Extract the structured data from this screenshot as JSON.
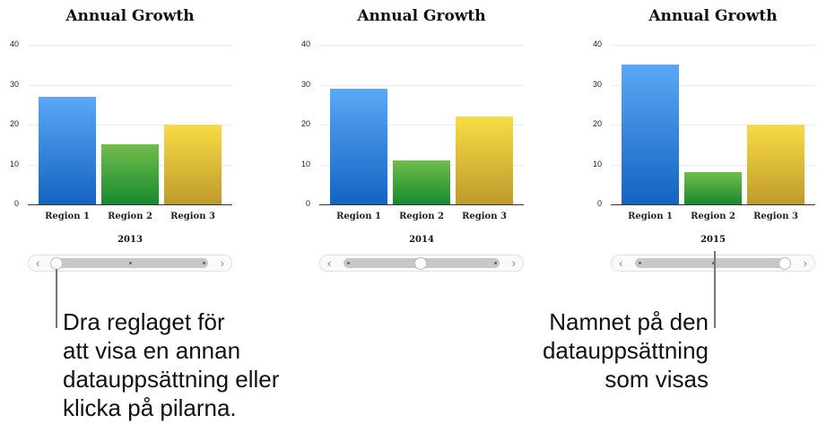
{
  "chart_data": [
    {
      "type": "bar",
      "title": "Annual Growth",
      "categories": [
        "Region 1",
        "Region 2",
        "Region 3"
      ],
      "values": [
        27,
        15,
        20
      ],
      "dataset_label": "2013",
      "ylim": [
        0,
        40
      ],
      "yticks": [
        "0",
        "10",
        "20",
        "30",
        "40"
      ],
      "grid": true,
      "colors": [
        "#3d8ee8",
        "#3aa33a",
        "#e0c030"
      ]
    },
    {
      "type": "bar",
      "title": "Annual Growth",
      "categories": [
        "Region 1",
        "Region 2",
        "Region 3"
      ],
      "values": [
        29,
        11,
        22
      ],
      "dataset_label": "2014",
      "ylim": [
        0,
        40
      ],
      "yticks": [
        "0",
        "10",
        "20",
        "30",
        "40"
      ],
      "grid": true,
      "colors": [
        "#3d8ee8",
        "#3aa33a",
        "#e0c030"
      ]
    },
    {
      "type": "bar",
      "title": "Annual Growth",
      "categories": [
        "Region 1",
        "Region 2",
        "Region 3"
      ],
      "values": [
        35,
        8,
        20
      ],
      "dataset_label": "2015",
      "ylim": [
        0,
        40
      ],
      "yticks": [
        "0",
        "10",
        "20",
        "30",
        "40"
      ],
      "grid": true,
      "colors": [
        "#3d8ee8",
        "#3aa33a",
        "#e0c030"
      ]
    }
  ],
  "sliders": [
    {
      "position": 0
    },
    {
      "position": 0.5
    },
    {
      "position": 1
    }
  ],
  "callouts": {
    "left": "Dra reglaget för\natt visa en annan\ndatauppsättning eller\nklicka på pilarna.",
    "right": "Namnet på den\ndatauppsättning\nsom visas"
  }
}
